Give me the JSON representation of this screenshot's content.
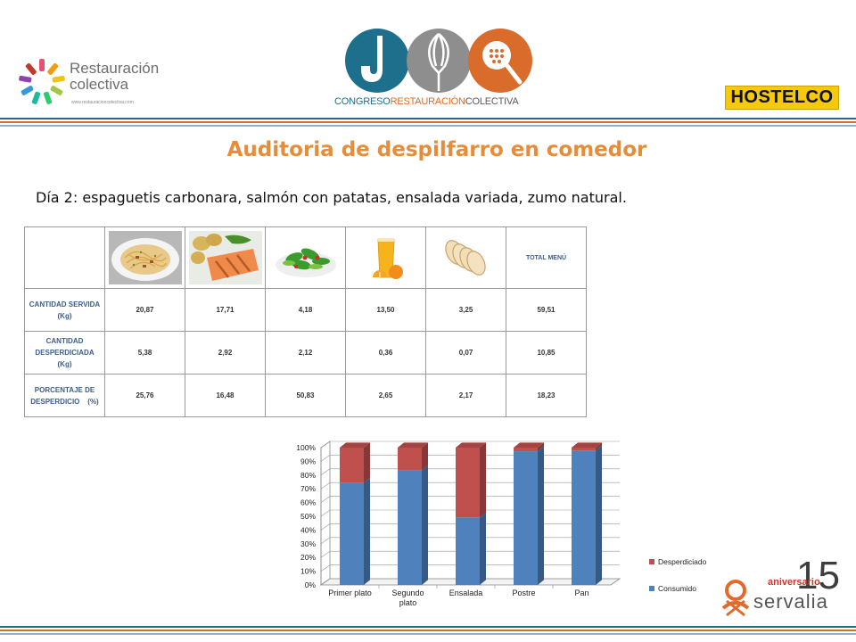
{
  "header": {
    "left_logo": {
      "title": "Restauración",
      "subtitle": "colectiva",
      "url": "www.restauracioncolectiva.com"
    },
    "center_logo": {
      "part1": "CONGRESO",
      "part2": "RESTAURACIÓN",
      "part3": "COLECTIVA"
    },
    "right_logo": {
      "text": "HOSTELCO"
    }
  },
  "colors": {
    "accent_orange": "#e58d3a",
    "table_header_blue": "#3b5e8c",
    "consumido": "#4f81bd",
    "desperdiciado": "#c0504d",
    "stripe_blue": "#1e6f8c",
    "stripe_orange": "#d96b2b"
  },
  "title": "Auditoria de despilfarro en comedor",
  "subtitle": "Día 2: espaguetis carbonara, salmón con patatas, ensalada variada, zumo natural.",
  "table": {
    "total_header": "TOTAL MENÚ",
    "rows": [
      {
        "label_lines": [
          "CANTIDAD SERVIDA",
          "(Kg)"
        ],
        "values": [
          "20,87",
          "17,71",
          "4,18",
          "13,50",
          "3,25",
          "59,51"
        ]
      },
      {
        "label_lines": [
          "CANTIDAD",
          "DESPERDICIADA",
          "(Kg)"
        ],
        "values": [
          "5,38",
          "2,92",
          "2,12",
          "0,36",
          "0,07",
          "10,85"
        ]
      },
      {
        "label_lines": [
          "PORCENTAJE DE",
          "DESPERDICIO    (%)"
        ],
        "values": [
          "25,76",
          "16,48",
          "50,83",
          "2,65",
          "2,17",
          "18,23"
        ]
      }
    ]
  },
  "chart_data": {
    "type": "bar",
    "stacked": true,
    "percent": true,
    "categories": [
      "Primer plato",
      "Segundo plato",
      "Ensalada",
      "Postre",
      "Pan"
    ],
    "series": [
      {
        "name": "Consumido",
        "values": [
          74.24,
          83.52,
          49.17,
          97.35,
          97.83
        ],
        "color": "#4f81bd"
      },
      {
        "name": "Desperdiciado",
        "values": [
          25.76,
          16.48,
          50.83,
          2.65,
          2.17
        ],
        "color": "#c0504d"
      }
    ],
    "ylim": [
      0,
      100
    ],
    "yticks": [
      "0%",
      "10%",
      "20%",
      "30%",
      "40%",
      "50%",
      "60%",
      "70%",
      "80%",
      "90%",
      "100%"
    ],
    "grid": true,
    "legend_position": "right",
    "legend_order": [
      "Desperdiciado",
      "Consumido"
    ]
  },
  "footer_logo": {
    "big_number": "15",
    "word1": "aniversario",
    "word2": "servalia"
  }
}
